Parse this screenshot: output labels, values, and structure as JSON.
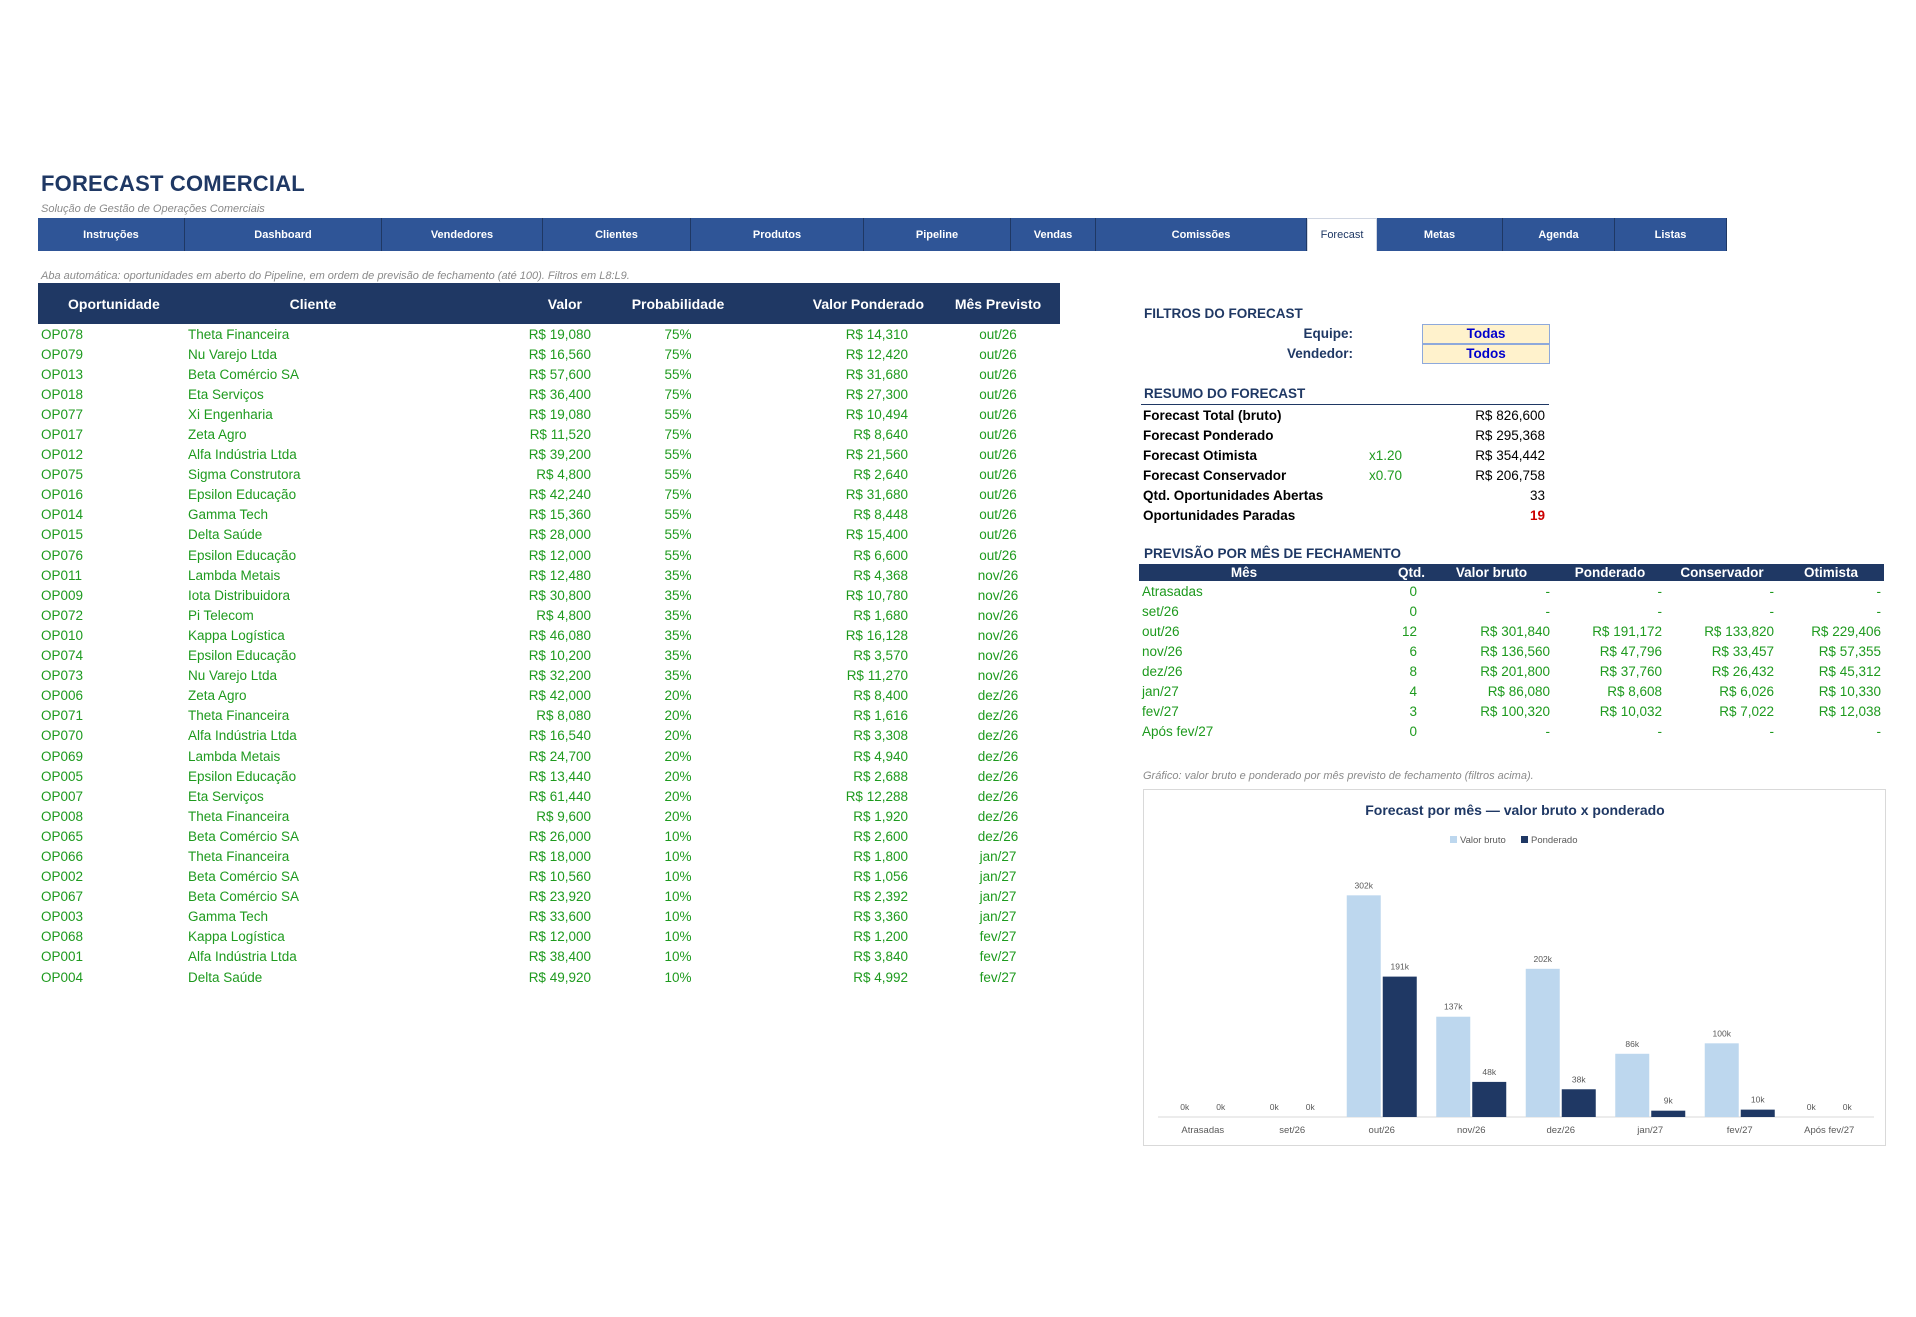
{
  "header": {
    "title": "FORECAST COMERCIAL",
    "subtitle": "Solução de Gestão de Operações Comerciais"
  },
  "tabs": [
    {
      "label": "Instruções",
      "w": 147
    },
    {
      "label": "Dashboard",
      "w": 197
    },
    {
      "label": "Vendedores",
      "w": 161
    },
    {
      "label": "Clientes",
      "w": 148
    },
    {
      "label": "Produtos",
      "w": 173
    },
    {
      "label": "Pipeline",
      "w": 147
    },
    {
      "label": "Vendas",
      "w": 85
    },
    {
      "label": "Comissões",
      "w": 211
    },
    {
      "label": "Forecast",
      "w": 70,
      "active": true
    },
    {
      "label": "Metas",
      "w": 126
    },
    {
      "label": "Agenda",
      "w": 112
    },
    {
      "label": "Listas",
      "w": 112
    }
  ],
  "note": "Aba automática: oportunidades em aberto do Pipeline, em ordem de previsão de fechamento (até 100). Filtros em L8:L9.",
  "main_table": {
    "headers": [
      "Oportunidade",
      "Cliente",
      "Valor",
      "Probabilidade",
      "Valor Ponderado",
      "Mês Previsto"
    ],
    "rows": [
      [
        "OP078",
        "Theta Financeira",
        "R$ 19,080",
        "75%",
        "R$ 14,310",
        "out/26"
      ],
      [
        "OP079",
        "Nu Varejo Ltda",
        "R$ 16,560",
        "75%",
        "R$ 12,420",
        "out/26"
      ],
      [
        "OP013",
        "Beta Comércio SA",
        "R$ 57,600",
        "55%",
        "R$ 31,680",
        "out/26"
      ],
      [
        "OP018",
        "Eta Serviços",
        "R$ 36,400",
        "75%",
        "R$ 27,300",
        "out/26"
      ],
      [
        "OP077",
        "Xi Engenharia",
        "R$ 19,080",
        "55%",
        "R$ 10,494",
        "out/26"
      ],
      [
        "OP017",
        "Zeta Agro",
        "R$ 11,520",
        "75%",
        "R$ 8,640",
        "out/26"
      ],
      [
        "OP012",
        "Alfa Indústria Ltda",
        "R$ 39,200",
        "55%",
        "R$ 21,560",
        "out/26"
      ],
      [
        "OP075",
        "Sigma Construtora",
        "R$ 4,800",
        "55%",
        "R$ 2,640",
        "out/26"
      ],
      [
        "OP016",
        "Epsilon Educação",
        "R$ 42,240",
        "75%",
        "R$ 31,680",
        "out/26"
      ],
      [
        "OP014",
        "Gamma Tech",
        "R$ 15,360",
        "55%",
        "R$ 8,448",
        "out/26"
      ],
      [
        "OP015",
        "Delta Saúde",
        "R$ 28,000",
        "55%",
        "R$ 15,400",
        "out/26"
      ],
      [
        "OP076",
        "Epsilon Educação",
        "R$ 12,000",
        "55%",
        "R$ 6,600",
        "out/26"
      ],
      [
        "OP011",
        "Lambda Metais",
        "R$ 12,480",
        "35%",
        "R$ 4,368",
        "nov/26"
      ],
      [
        "OP009",
        "Iota Distribuidora",
        "R$ 30,800",
        "35%",
        "R$ 10,780",
        "nov/26"
      ],
      [
        "OP072",
        "Pi Telecom",
        "R$ 4,800",
        "35%",
        "R$ 1,680",
        "nov/26"
      ],
      [
        "OP010",
        "Kappa Logística",
        "R$ 46,080",
        "35%",
        "R$ 16,128",
        "nov/26"
      ],
      [
        "OP074",
        "Epsilon Educação",
        "R$ 10,200",
        "35%",
        "R$ 3,570",
        "nov/26"
      ],
      [
        "OP073",
        "Nu Varejo Ltda",
        "R$ 32,200",
        "35%",
        "R$ 11,270",
        "nov/26"
      ],
      [
        "OP006",
        "Zeta Agro",
        "R$ 42,000",
        "20%",
        "R$ 8,400",
        "dez/26"
      ],
      [
        "OP071",
        "Theta Financeira",
        "R$ 8,080",
        "20%",
        "R$ 1,616",
        "dez/26"
      ],
      [
        "OP070",
        "Alfa Indústria Ltda",
        "R$ 16,540",
        "20%",
        "R$ 3,308",
        "dez/26"
      ],
      [
        "OP069",
        "Lambda Metais",
        "R$ 24,700",
        "20%",
        "R$ 4,940",
        "dez/26"
      ],
      [
        "OP005",
        "Epsilon Educação",
        "R$ 13,440",
        "20%",
        "R$ 2,688",
        "dez/26"
      ],
      [
        "OP007",
        "Eta Serviços",
        "R$ 61,440",
        "20%",
        "R$ 12,288",
        "dez/26"
      ],
      [
        "OP008",
        "Theta Financeira",
        "R$ 9,600",
        "20%",
        "R$ 1,920",
        "dez/26"
      ],
      [
        "OP065",
        "Beta Comércio SA",
        "R$ 26,000",
        "10%",
        "R$ 2,600",
        "dez/26"
      ],
      [
        "OP066",
        "Theta Financeira",
        "R$ 18,000",
        "10%",
        "R$ 1,800",
        "jan/27"
      ],
      [
        "OP002",
        "Beta Comércio SA",
        "R$ 10,560",
        "10%",
        "R$ 1,056",
        "jan/27"
      ],
      [
        "OP067",
        "Beta Comércio SA",
        "R$ 23,920",
        "10%",
        "R$ 2,392",
        "jan/27"
      ],
      [
        "OP003",
        "Gamma Tech",
        "R$ 33,600",
        "10%",
        "R$ 3,360",
        "jan/27"
      ],
      [
        "OP068",
        "Kappa Logística",
        "R$ 12,000",
        "10%",
        "R$ 1,200",
        "fev/27"
      ],
      [
        "OP001",
        "Alfa Indústria Ltda",
        "R$ 38,400",
        "10%",
        "R$ 3,840",
        "fev/27"
      ],
      [
        "OP004",
        "Delta Saúde",
        "R$ 49,920",
        "10%",
        "R$ 4,992",
        "fev/27"
      ]
    ]
  },
  "filters": {
    "title": "FILTROS DO FORECAST",
    "equipe_label": "Equipe:",
    "equipe_value": "Todas",
    "vendedor_label": "Vendedor:",
    "vendedor_value": "Todos"
  },
  "summary": {
    "title": "RESUMO DO FORECAST",
    "rows": [
      {
        "label": "Forecast Total (bruto)",
        "mult": "",
        "value": "R$ 826,600"
      },
      {
        "label": "Forecast Ponderado",
        "mult": "",
        "value": "R$ 295,368"
      },
      {
        "label": "Forecast Otimista",
        "mult": "x1.20",
        "value": "R$ 354,442"
      },
      {
        "label": "Forecast Conservador",
        "mult": "x0.70",
        "value": "R$ 206,758"
      },
      {
        "label": "Qtd. Oportunidades Abertas",
        "mult": "",
        "value": "33"
      },
      {
        "label": "Oportunidades Paradas",
        "mult": "",
        "value": "19",
        "alert": true
      }
    ],
    "alert_color": "#cc0000"
  },
  "monthly": {
    "title": "PREVISÃO POR MÊS DE FECHAMENTO",
    "headers": [
      "Mês",
      "Qtd.",
      "Valor bruto",
      "Ponderado",
      "Conservador",
      "Otimista"
    ],
    "rows": [
      [
        "Atrasadas",
        "0",
        "-",
        "-",
        "-",
        "-"
      ],
      [
        "set/26",
        "0",
        "-",
        "-",
        "-",
        "-"
      ],
      [
        "out/26",
        "12",
        "R$ 301,840",
        "R$ 191,172",
        "R$ 133,820",
        "R$ 229,406"
      ],
      [
        "nov/26",
        "6",
        "R$ 136,560",
        "R$ 47,796",
        "R$ 33,457",
        "R$ 57,355"
      ],
      [
        "dez/26",
        "8",
        "R$ 201,800",
        "R$ 37,760",
        "R$ 26,432",
        "R$ 45,312"
      ],
      [
        "jan/27",
        "4",
        "R$ 86,080",
        "R$ 8,608",
        "R$ 6,026",
        "R$ 10,330"
      ],
      [
        "fev/27",
        "3",
        "R$ 100,320",
        "R$ 10,032",
        "R$ 7,022",
        "R$ 12,038"
      ],
      [
        "Após fev/27",
        "0",
        "-",
        "-",
        "-",
        "-"
      ]
    ]
  },
  "chart_note": "Gráfico: valor bruto e ponderado por mês previsto de fechamento (filtros acima).",
  "chart_data": {
    "type": "bar",
    "title": "Forecast por mês — valor bruto x ponderado",
    "categories": [
      "Atrasadas",
      "set/26",
      "out/26",
      "nov/26",
      "dez/26",
      "jan/27",
      "fev/27",
      "Após fev/27"
    ],
    "series": [
      {
        "name": "Valor bruto",
        "color": "#bdd7ee",
        "values": [
          0,
          0,
          301840,
          136560,
          201800,
          86080,
          100320,
          0
        ],
        "labels": [
          "0k",
          "0k",
          "302k",
          "137k",
          "202k",
          "86k",
          "100k",
          "0k"
        ]
      },
      {
        "name": "Ponderado",
        "color": "#1f3864",
        "values": [
          0,
          0,
          191172,
          47796,
          37760,
          8608,
          10032,
          0
        ],
        "labels": [
          "0k",
          "0k",
          "191k",
          "48k",
          "38k",
          "9k",
          "10k",
          "0k"
        ]
      }
    ],
    "legend": "top",
    "grid": false,
    "ylim": [
      0,
      320000
    ]
  },
  "colors": {
    "header_bg": "#1f3864",
    "tab_bg": "#2f5597",
    "data_green": "#1e9a1e",
    "filter_bg": "#fff2cc"
  }
}
